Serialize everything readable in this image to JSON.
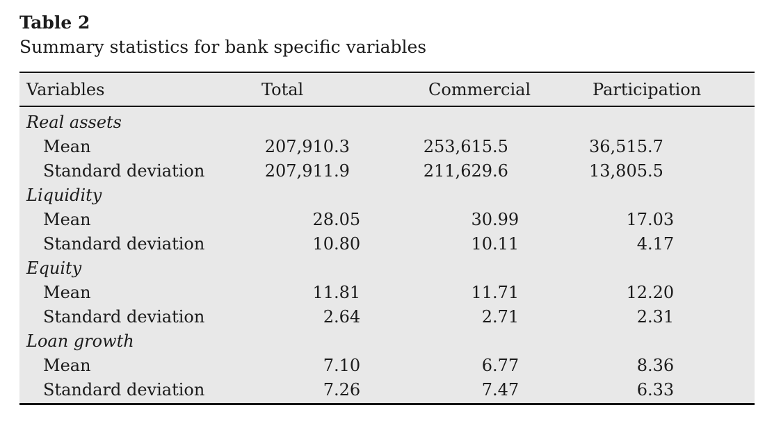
{
  "caption": {
    "label": "Table 2",
    "title": "Summary statistics for bank specific variables"
  },
  "columns": [
    "Variables",
    "Total",
    "Commercial",
    "Participation"
  ],
  "sections": [
    {
      "name": "Real assets",
      "rows": [
        {
          "label": "Mean",
          "values": [
            "207,910.3",
            "253,615.5",
            "36,515.7"
          ]
        },
        {
          "label": "Standard deviation",
          "values": [
            "207,911.9",
            "211,629.6",
            "13,805.5"
          ]
        }
      ]
    },
    {
      "name": "Liquidity",
      "rows": [
        {
          "label": "Mean",
          "values": [
            "28.05",
            "30.99",
            "17.03"
          ]
        },
        {
          "label": "Standard deviation",
          "values": [
            "10.80",
            "10.11",
            "4.17"
          ]
        }
      ]
    },
    {
      "name": "Equity",
      "rows": [
        {
          "label": "Mean",
          "values": [
            "11.81",
            "11.71",
            "12.20"
          ]
        },
        {
          "label": "Standard deviation",
          "values": [
            "2.64",
            "2.71",
            "2.31"
          ]
        }
      ]
    },
    {
      "name": "Loan growth",
      "rows": [
        {
          "label": "Mean",
          "values": [
            "7.10",
            "6.77",
            "8.36"
          ]
        },
        {
          "label": "Standard deviation",
          "values": [
            "7.26",
            "7.47",
            "6.33"
          ]
        }
      ]
    }
  ],
  "colors": {
    "table_background": "#e8e8e8",
    "rule": "#151515",
    "text": "#1b1b1b",
    "page_background": "#ffffff"
  }
}
